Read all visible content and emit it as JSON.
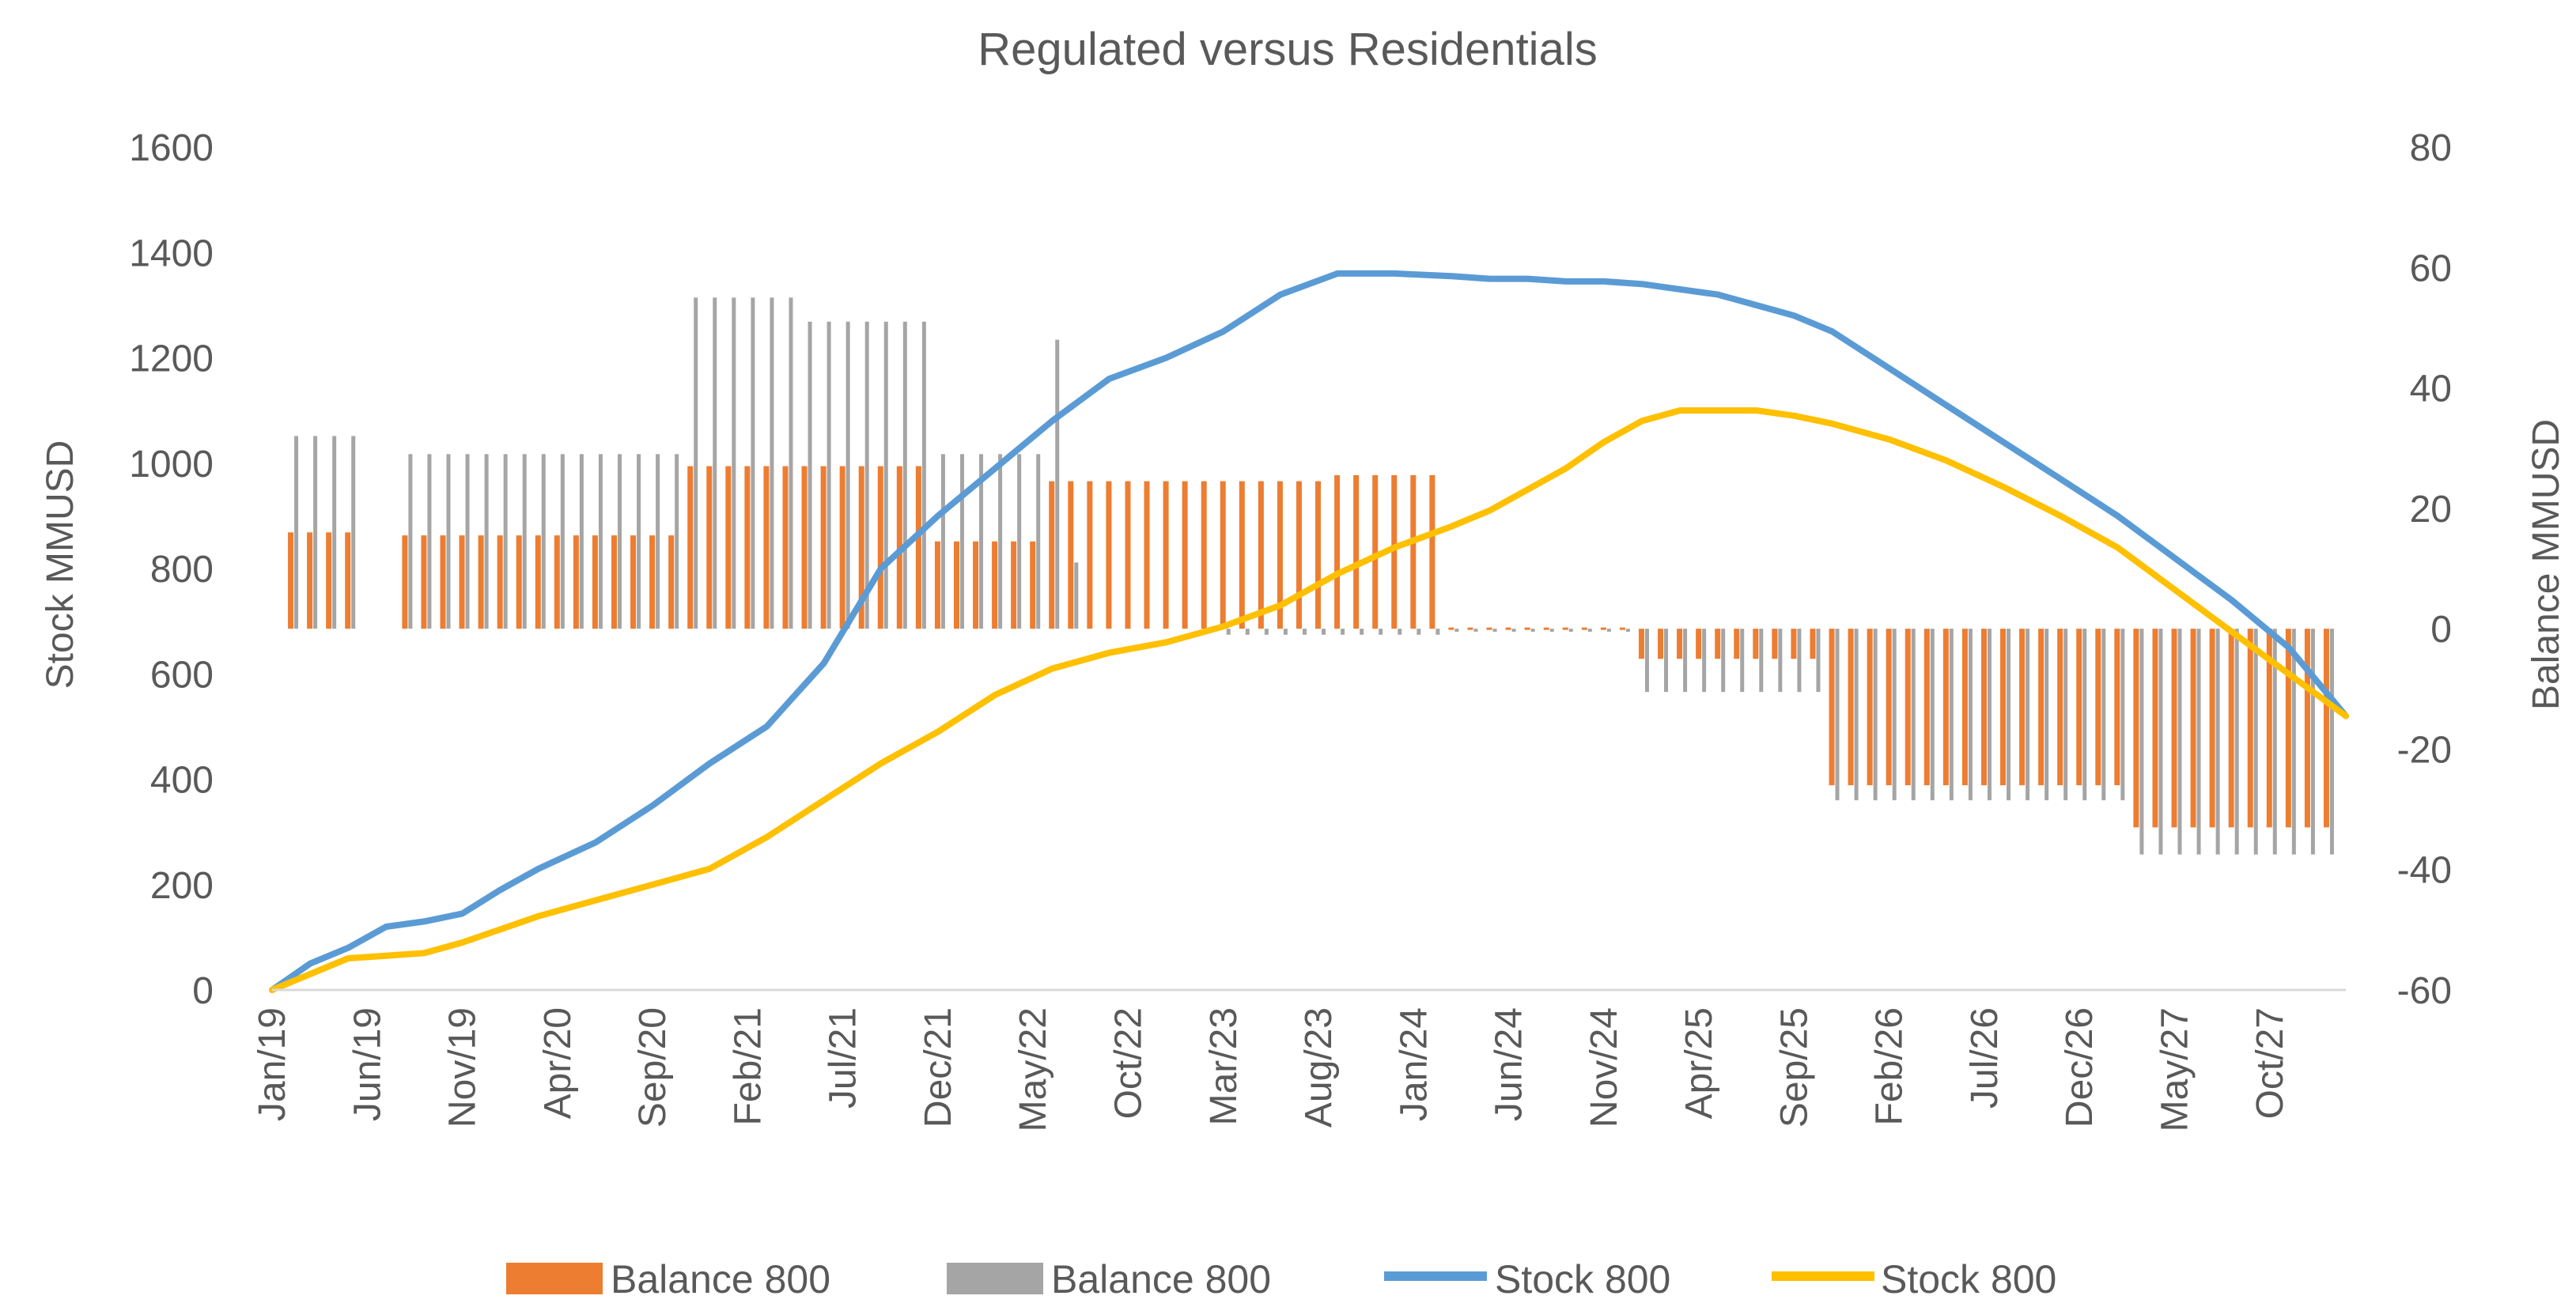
{
  "chart_data": {
    "type": "bar+line (dual axis)",
    "title": "Regulated versus Residentials",
    "ylabel_left": "Stock MMUSD",
    "ylabel_right": "Balance MMUSD",
    "ylim_left": [
      0,
      1600
    ],
    "ylim_right": [
      -60,
      80
    ],
    "yticks_left": [
      "0",
      "200",
      "400",
      "600",
      "800",
      "1000",
      "1200",
      "1400",
      "1600"
    ],
    "yticks_right": [
      "-60",
      "-40",
      "-20",
      "0",
      "20",
      "40",
      "60",
      "80"
    ],
    "xtick_labels": [
      "Jan/19",
      "Jun/19",
      "Nov/19",
      "Apr/20",
      "Sep/20",
      "Feb/21",
      "Jul/21",
      "Dec/21",
      "May/22",
      "Oct/22",
      "Mar/23",
      "Aug/23",
      "Jan/24",
      "Jun/24",
      "Nov/24",
      "Apr/25",
      "Sep/25",
      "Feb/26",
      "Jul/26",
      "Dec/26",
      "May/27",
      "Oct/27"
    ],
    "x_period": "monthly, Jan/19 to Jan/28 (109 points)",
    "colors": {
      "balance_orange": "#ED7D31",
      "balance_gray": "#A5A5A5",
      "stock_blue": "#5B9BD5",
      "stock_yellow": "#FFC000"
    },
    "series": [
      {
        "name": "Balance 800",
        "type": "bar",
        "axis": "right",
        "color": "#ED7D31",
        "segments": [
          {
            "from": 1,
            "to": 4,
            "value": 16
          },
          {
            "from": 7,
            "to": 21,
            "value": 15.5
          },
          {
            "from": 22,
            "to": 34,
            "value": 27
          },
          {
            "from": 35,
            "to": 40,
            "value": 14.5
          },
          {
            "from": 41,
            "to": 55,
            "value": 24.5
          },
          {
            "from": 56,
            "to": 61,
            "value": 25.5
          },
          {
            "from": 62,
            "to": 71,
            "value": 0
          },
          {
            "from": 72,
            "to": 81,
            "value": -5
          },
          {
            "from": 82,
            "to": 97,
            "value": -26
          },
          {
            "from": 98,
            "to": 108,
            "value": -33
          }
        ]
      },
      {
        "name": "Balance 800",
        "type": "bar",
        "axis": "right",
        "color": "#A5A5A5",
        "segments": [
          {
            "from": 1,
            "to": 4,
            "value": 32
          },
          {
            "from": 7,
            "to": 21,
            "value": 29
          },
          {
            "from": 22,
            "to": 27,
            "value": 55
          },
          {
            "from": 28,
            "to": 34,
            "value": 51
          },
          {
            "from": 35,
            "to": 40,
            "value": 29
          },
          {
            "from": 41,
            "to": 41,
            "value": 48
          },
          {
            "from": 42,
            "to": 42,
            "value": 11
          },
          {
            "from": 50,
            "to": 61,
            "value": -1
          },
          {
            "from": 62,
            "to": 71,
            "value": -0.5
          },
          {
            "from": 72,
            "to": 81,
            "value": -10.5
          },
          {
            "from": 82,
            "to": 97,
            "value": -28.5
          },
          {
            "from": 98,
            "to": 108,
            "value": -37.5
          }
        ]
      },
      {
        "name": "Stock 800",
        "type": "line",
        "axis": "left",
        "color": "#5B9BD5",
        "points": [
          [
            0,
            0
          ],
          [
            2,
            50
          ],
          [
            4,
            80
          ],
          [
            6,
            120
          ],
          [
            8,
            130
          ],
          [
            10,
            145
          ],
          [
            12,
            190
          ],
          [
            14,
            230
          ],
          [
            17,
            280
          ],
          [
            20,
            350
          ],
          [
            23,
            430
          ],
          [
            26,
            500
          ],
          [
            29,
            620
          ],
          [
            32,
            800
          ],
          [
            35,
            900
          ],
          [
            38,
            990
          ],
          [
            41,
            1080
          ],
          [
            44,
            1160
          ],
          [
            47,
            1200
          ],
          [
            50,
            1250
          ],
          [
            53,
            1320
          ],
          [
            56,
            1360
          ],
          [
            59,
            1360
          ],
          [
            62,
            1355
          ],
          [
            64,
            1350
          ],
          [
            66,
            1350
          ],
          [
            68,
            1345
          ],
          [
            70,
            1345
          ],
          [
            72,
            1340
          ],
          [
            74,
            1330
          ],
          [
            76,
            1320
          ],
          [
            78,
            1300
          ],
          [
            80,
            1280
          ],
          [
            82,
            1250
          ],
          [
            85,
            1180
          ],
          [
            88,
            1110
          ],
          [
            91,
            1040
          ],
          [
            94,
            970
          ],
          [
            97,
            900
          ],
          [
            100,
            820
          ],
          [
            103,
            740
          ],
          [
            106,
            650
          ],
          [
            109,
            520
          ]
        ]
      },
      {
        "name": "Stock 800",
        "type": "line",
        "axis": "left",
        "color": "#FFC000",
        "points": [
          [
            0,
            0
          ],
          [
            2,
            30
          ],
          [
            4,
            60
          ],
          [
            6,
            65
          ],
          [
            8,
            70
          ],
          [
            10,
            90
          ],
          [
            12,
            115
          ],
          [
            14,
            140
          ],
          [
            17,
            170
          ],
          [
            20,
            200
          ],
          [
            23,
            230
          ],
          [
            26,
            290
          ],
          [
            29,
            360
          ],
          [
            32,
            430
          ],
          [
            35,
            490
          ],
          [
            38,
            560
          ],
          [
            41,
            610
          ],
          [
            44,
            640
          ],
          [
            47,
            660
          ],
          [
            50,
            690
          ],
          [
            53,
            730
          ],
          [
            56,
            790
          ],
          [
            59,
            840
          ],
          [
            62,
            880
          ],
          [
            64,
            910
          ],
          [
            66,
            950
          ],
          [
            68,
            990
          ],
          [
            70,
            1040
          ],
          [
            72,
            1080
          ],
          [
            74,
            1100
          ],
          [
            76,
            1100
          ],
          [
            78,
            1100
          ],
          [
            80,
            1090
          ],
          [
            82,
            1075
          ],
          [
            85,
            1045
          ],
          [
            88,
            1005
          ],
          [
            91,
            955
          ],
          [
            94,
            900
          ],
          [
            97,
            840
          ],
          [
            100,
            760
          ],
          [
            103,
            680
          ],
          [
            106,
            600
          ],
          [
            109,
            520
          ]
        ]
      }
    ],
    "legend": {
      "position": "bottom",
      "items": [
        {
          "label": "Balance 800",
          "symbol": "bar",
          "color": "#ED7D31"
        },
        {
          "label": "Balance 800",
          "symbol": "bar",
          "color": "#A5A5A5"
        },
        {
          "label": "Stock 800",
          "symbol": "line",
          "color": "#5B9BD5"
        },
        {
          "label": "Stock 800",
          "symbol": "line",
          "color": "#FFC000"
        }
      ]
    }
  }
}
